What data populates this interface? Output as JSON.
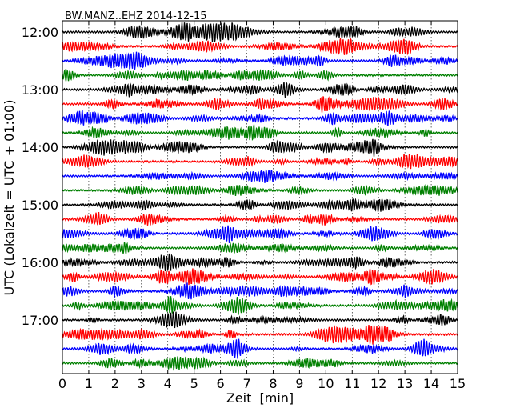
{
  "chart_data": {
    "type": "line",
    "title": "BW.MANZ..EHZ 2014-12-15",
    "xlabel": "Zeit  [min]",
    "ylabel": "UTC (Lokalzeit = UTC + 01:00)",
    "xlim": [
      0,
      15
    ],
    "x_ticks": [
      "0",
      "1",
      "2",
      "3",
      "4",
      "5",
      "6",
      "7",
      "8",
      "9",
      "10",
      "11",
      "12",
      "13",
      "14",
      "15"
    ],
    "y_ticks": [
      "12:00",
      "13:00",
      "14:00",
      "15:00",
      "16:00",
      "17:00"
    ],
    "grid_x": true,
    "trace_interval_minutes": 15,
    "start_time": "12:00",
    "traces": [
      {
        "start": "12:00",
        "color": "#000000"
      },
      {
        "start": "12:15",
        "color": "#ff0000"
      },
      {
        "start": "12:30",
        "color": "#0000ff"
      },
      {
        "start": "12:45",
        "color": "#008000"
      },
      {
        "start": "13:00",
        "color": "#000000"
      },
      {
        "start": "13:15",
        "color": "#ff0000"
      },
      {
        "start": "13:30",
        "color": "#0000ff"
      },
      {
        "start": "13:45",
        "color": "#008000"
      },
      {
        "start": "14:00",
        "color": "#000000"
      },
      {
        "start": "14:15",
        "color": "#ff0000"
      },
      {
        "start": "14:30",
        "color": "#0000ff"
      },
      {
        "start": "14:45",
        "color": "#008000"
      },
      {
        "start": "15:00",
        "color": "#000000"
      },
      {
        "start": "15:15",
        "color": "#ff0000"
      },
      {
        "start": "15:30",
        "color": "#0000ff"
      },
      {
        "start": "15:45",
        "color": "#008000"
      },
      {
        "start": "16:00",
        "color": "#000000"
      },
      {
        "start": "16:15",
        "color": "#ff0000"
      },
      {
        "start": "16:30",
        "color": "#0000ff"
      },
      {
        "start": "16:45",
        "color": "#008000"
      },
      {
        "start": "17:00",
        "color": "#000000"
      },
      {
        "start": "17:15",
        "color": "#ff0000"
      },
      {
        "start": "17:30",
        "color": "#0000ff"
      },
      {
        "start": "17:45",
        "color": "#008000"
      }
    ]
  }
}
